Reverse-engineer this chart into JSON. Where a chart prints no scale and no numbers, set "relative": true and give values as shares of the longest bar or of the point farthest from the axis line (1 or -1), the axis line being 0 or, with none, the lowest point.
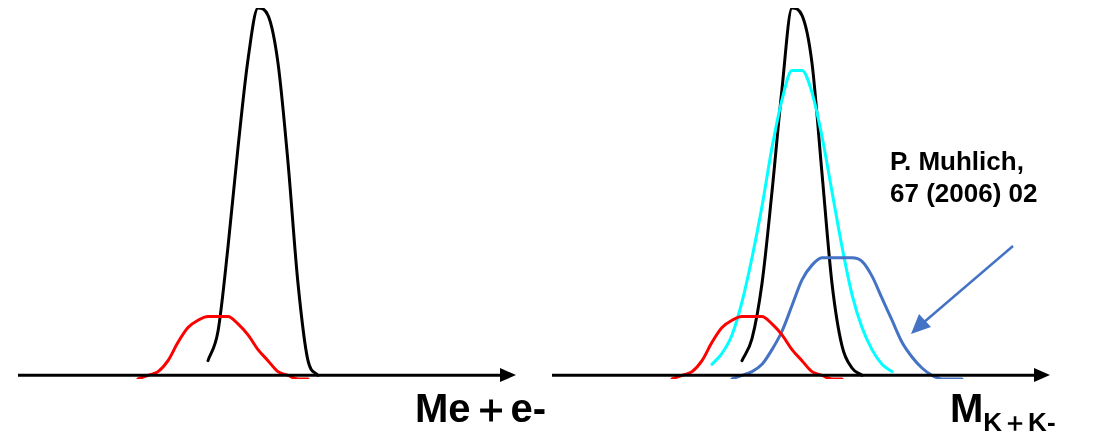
{
  "chart_data": [
    {
      "type": "line",
      "relative": true,
      "marker": "none",
      "xlabel": "Me＋e-",
      "categories": [
        null,
        null,
        null,
        null,
        null,
        null,
        null,
        null,
        null,
        null,
        null,
        null,
        null,
        null,
        null,
        null,
        null,
        null,
        null,
        null,
        null,
        null,
        null,
        null,
        null,
        null,
        null,
        null,
        null,
        null,
        null,
        null,
        null,
        null,
        null,
        null,
        null,
        null,
        null,
        null,
        null,
        null,
        null,
        null,
        null,
        null,
        null,
        null,
        null,
        null
      ],
      "series": [
        {
          "color": "#ff0000",
          "values": [
            null,
            null,
            null,
            null,
            null,
            null,
            null,
            null,
            null,
            null,
            null,
            null,
            -0.01,
            0,
            0.01,
            0.04,
            0.09,
            0.13,
            0.15,
            0.16,
            0.16,
            0.16,
            0.14,
            0.11,
            0.07,
            0.04,
            0.01,
            0,
            -0.01,
            -0.01,
            null,
            null,
            null,
            null,
            null,
            null,
            null,
            null,
            null,
            null,
            null,
            null,
            null,
            null,
            null,
            null,
            null,
            null,
            null,
            null
          ]
        },
        {
          "color": "#000000",
          "values": [
            null,
            null,
            null,
            null,
            null,
            null,
            null,
            null,
            null,
            null,
            null,
            null,
            null,
            null,
            null,
            null,
            null,
            null,
            null,
            0.04,
            0.12,
            0.35,
            0.62,
            0.86,
            1,
            0.98,
            0.85,
            0.58,
            0.25,
            0.04,
            0,
            null,
            null,
            null,
            null,
            null,
            null,
            null,
            null,
            null,
            null,
            null,
            null,
            null,
            null,
            null,
            null,
            null,
            null,
            null
          ]
        }
      ]
    },
    {
      "type": "line",
      "relative": true,
      "marker": "none",
      "xlabel": "M$_{K＋K-}$",
      "annotations": [
        "P. Muhlich,\n67 (2006) 02"
      ],
      "categories": [
        null,
        null,
        null,
        null,
        null,
        null,
        null,
        null,
        null,
        null,
        null,
        null,
        null,
        null,
        null,
        null,
        null,
        null,
        null,
        null,
        null,
        null,
        null,
        null,
        null,
        null,
        null,
        null,
        null,
        null,
        null,
        null,
        null,
        null,
        null,
        null,
        null,
        null,
        null,
        null,
        null,
        null,
        null,
        null,
        null,
        null,
        null,
        null,
        null,
        null
      ],
      "series": [
        {
          "color": "#ff0000",
          "values": [
            null,
            null,
            null,
            null,
            null,
            null,
            null,
            null,
            null,
            null,
            null,
            null,
            -0.01,
            0,
            0.01,
            0.04,
            0.09,
            0.13,
            0.15,
            0.16,
            0.16,
            0.16,
            0.14,
            0.11,
            0.07,
            0.04,
            0.01,
            0,
            -0.01,
            -0.01,
            null,
            null,
            null,
            null,
            null,
            null,
            null,
            null,
            null,
            null,
            null,
            null,
            null,
            null,
            null,
            null,
            null,
            null,
            null,
            null
          ]
        },
        {
          "color": "#4472c4",
          "values": [
            null,
            null,
            null,
            null,
            null,
            null,
            null,
            null,
            null,
            null,
            null,
            null,
            null,
            null,
            null,
            null,
            null,
            null,
            -0.01,
            0,
            0.01,
            0.03,
            0.07,
            0.12,
            0.19,
            0.26,
            0.3,
            0.32,
            0.32,
            0.32,
            0.32,
            0.31,
            0.27,
            0.21,
            0.15,
            0.09,
            0.05,
            0.02,
            0,
            -0.01,
            -0.01,
            -0.01,
            null,
            null,
            null,
            null,
            null,
            null,
            null,
            null
          ]
        },
        {
          "color": "#00ffff",
          "values": [
            null,
            null,
            null,
            null,
            null,
            null,
            null,
            null,
            null,
            null,
            null,
            null,
            null,
            null,
            null,
            null,
            0.03,
            0.06,
            0.11,
            0.2,
            0.32,
            0.46,
            0.62,
            0.75,
            0.83,
            0.83,
            0.77,
            0.65,
            0.5,
            0.35,
            0.22,
            0.13,
            0.07,
            0.03,
            0.01,
            null,
            null,
            null,
            null,
            null,
            null,
            null,
            null,
            null,
            null,
            null,
            null,
            null,
            null,
            null
          ]
        },
        {
          "color": "#000000",
          "values": [
            null,
            null,
            null,
            null,
            null,
            null,
            null,
            null,
            null,
            null,
            null,
            null,
            null,
            null,
            null,
            null,
            null,
            null,
            null,
            0.04,
            0.1,
            0.25,
            0.5,
            0.78,
            1,
            0.98,
            0.85,
            0.55,
            0.25,
            0.08,
            0.02,
            0,
            null,
            null,
            null,
            null,
            null,
            null,
            null,
            null,
            null,
            null,
            null,
            null,
            null,
            null,
            null,
            null,
            null,
            null
          ]
        }
      ]
    }
  ]
}
